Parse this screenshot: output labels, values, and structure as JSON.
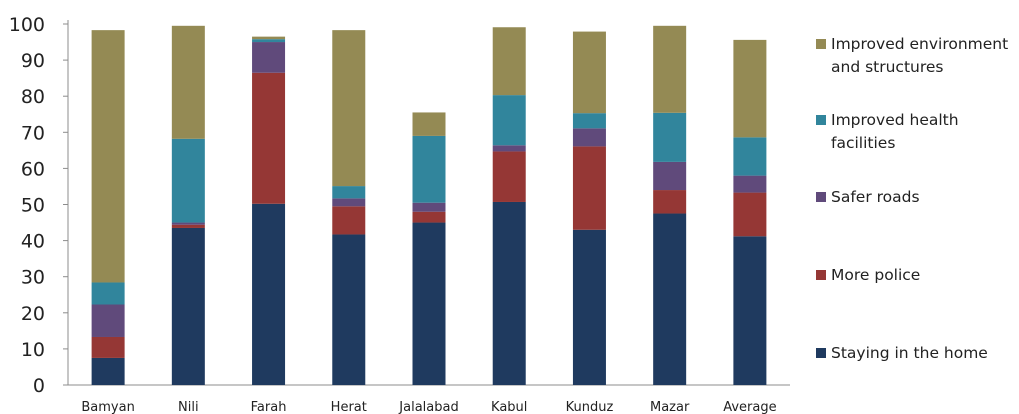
{
  "chart_data": {
    "type": "bar",
    "stacked": true,
    "categories": [
      "Bamyan",
      "Nili",
      "Farah",
      "Herat",
      "Jalalabad",
      "Kabul",
      "Kunduz",
      "Mazar",
      "Average"
    ],
    "ylim": [
      0,
      100
    ],
    "yticks": [
      0,
      10,
      20,
      30,
      40,
      50,
      60,
      70,
      80,
      90,
      100
    ],
    "grid": false,
    "legend_position": "right",
    "series": [
      {
        "name": "Staying in the home",
        "color": "#1f3a5f",
        "values": [
          7.5,
          43.5,
          50.2,
          41.7,
          45.0,
          50.7,
          43.0,
          47.5,
          41.2
        ]
      },
      {
        "name": "More police",
        "color": "#953735",
        "values": [
          5.8,
          0.9,
          36.3,
          7.8,
          3.0,
          14.0,
          23.1,
          6.5,
          12.1
        ]
      },
      {
        "name": "Safer roads",
        "color": "#604a7b",
        "values": [
          9.0,
          0.6,
          8.5,
          2.2,
          2.5,
          1.7,
          5.0,
          7.8,
          4.7
        ]
      },
      {
        "name": "Improved health facilities",
        "color": "#31859c",
        "values": [
          6.1,
          23.2,
          0.8,
          3.4,
          18.5,
          13.9,
          4.2,
          13.6,
          10.6
        ]
      },
      {
        "name": "Improved environment and structures",
        "color": "#948a54",
        "values": [
          69.9,
          31.3,
          0.7,
          43.2,
          6.5,
          18.8,
          22.6,
          24.1,
          27.0
        ]
      }
    ],
    "legend_order": [
      {
        "label_lines": [
          "Improved environment",
          "and structures"
        ],
        "color": "#948a54"
      },
      {
        "label_lines": [
          "Improved health",
          "facilities"
        ],
        "color": "#31859c"
      },
      {
        "label_lines": [
          "Safer roads"
        ],
        "color": "#604a7b"
      },
      {
        "label_lines": [
          "More police"
        ],
        "color": "#953735"
      },
      {
        "label_lines": [
          "Staying in the home"
        ],
        "color": "#1f3a5f"
      }
    ]
  }
}
